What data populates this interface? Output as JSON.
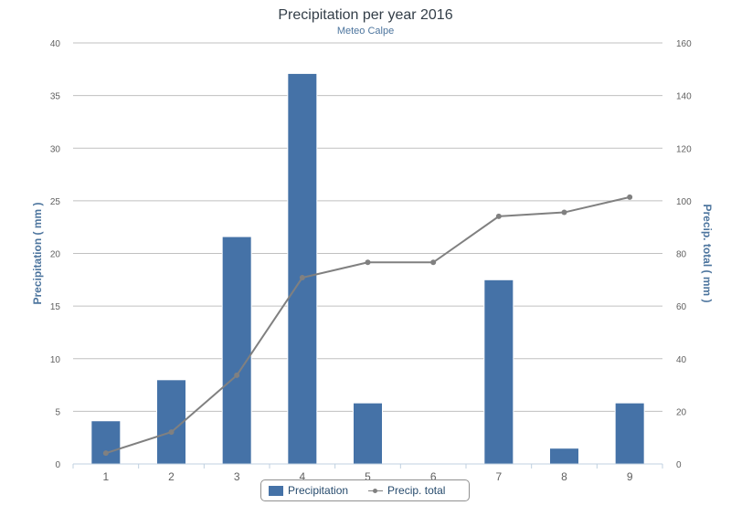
{
  "chart_data": {
    "type": "bar",
    "title": "Precipitation per year 2016",
    "subtitle": "Meteo Calpe",
    "categories": [
      "1",
      "2",
      "3",
      "4",
      "5",
      "6",
      "7",
      "8",
      "9"
    ],
    "y_left": {
      "label": "Precipitation ( mm )",
      "ylim": [
        0,
        40
      ],
      "ticks": [
        "0",
        "5",
        "10",
        "15",
        "20",
        "25",
        "30",
        "35",
        "40"
      ]
    },
    "y_right": {
      "label": "Precip. total ( mm )",
      "ylim": [
        0,
        160
      ],
      "ticks": [
        "0",
        "20",
        "40",
        "60",
        "80",
        "100",
        "120",
        "140",
        "160"
      ]
    },
    "series": [
      {
        "name": "Precipitation",
        "type": "bar",
        "axis": "left",
        "color": "#4572a7",
        "values": [
          4.1,
          8.0,
          21.6,
          37.1,
          5.8,
          0,
          17.5,
          1.5,
          5.8
        ]
      },
      {
        "name": "Precip. total",
        "type": "line",
        "axis": "right",
        "color": "#808080",
        "values": [
          4.1,
          12.1,
          33.7,
          70.8,
          76.6,
          76.6,
          94.1,
          95.6,
          101.4
        ]
      }
    ],
    "grid": true,
    "legend": "bottom-center"
  }
}
